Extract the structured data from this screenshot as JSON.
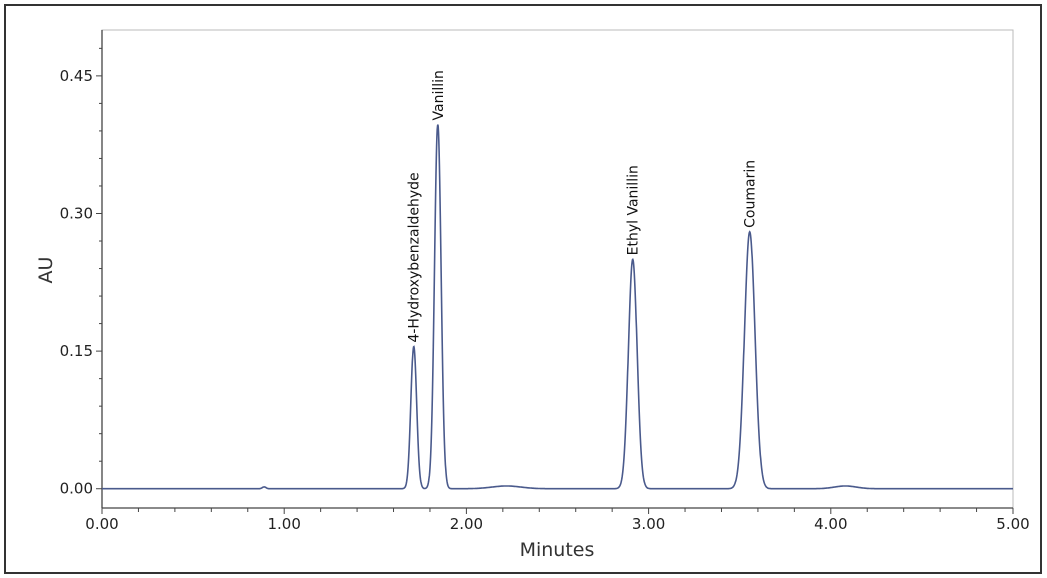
{
  "chart_data": {
    "type": "line",
    "xlabel": "Minutes",
    "ylabel": "AU",
    "xlim": [
      0,
      5
    ],
    "ylim": [
      -0.021,
      0.5
    ],
    "xticks": [
      "0.00",
      "1.00",
      "2.00",
      "3.00",
      "4.00",
      "5.00"
    ],
    "yticks": [
      "0.00",
      "0.15",
      "0.30",
      "0.45"
    ],
    "grid": false,
    "line_color": "#4a5a8c",
    "peaks": [
      {
        "name": "4-Hydroxybenzaldehyde",
        "retention_time": 1.711,
        "height": 0.155,
        "sigma": 0.016
      },
      {
        "name": "Vanillin",
        "retention_time": 1.843,
        "height": 0.397,
        "sigma": 0.018
      },
      {
        "name": "Ethyl Vanillin",
        "retention_time": 2.913,
        "height": 0.25,
        "sigma": 0.024
      },
      {
        "name": "Coumarin",
        "retention_time": 3.555,
        "height": 0.28,
        "sigma": 0.029
      }
    ],
    "minor_bumps": [
      {
        "retention_time": 0.89,
        "height": 0.002,
        "sigma": 0.01
      },
      {
        "retention_time": 2.22,
        "height": 0.003,
        "sigma": 0.08
      },
      {
        "retention_time": 4.08,
        "height": 0.003,
        "sigma": 0.06
      }
    ]
  }
}
